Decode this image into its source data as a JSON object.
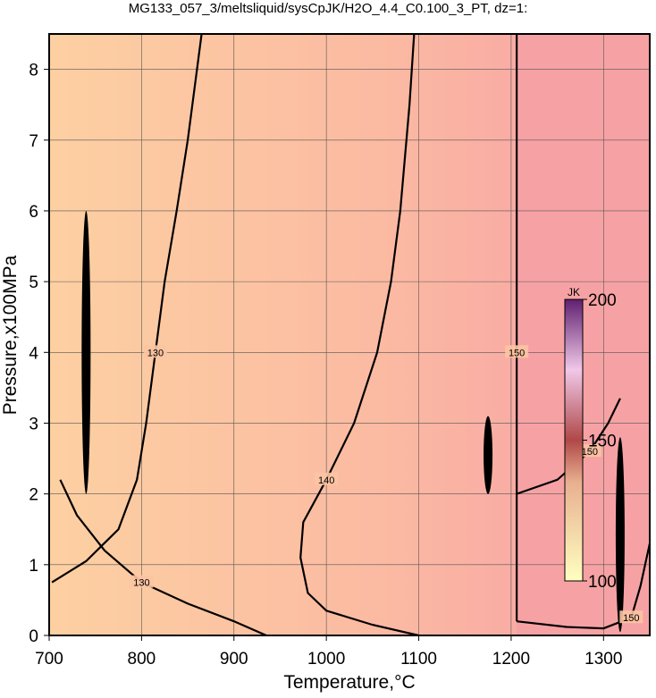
{
  "chart_data": {
    "type": "contour",
    "title": "MG133_057_3/meltsliquid/sysCpJK/H2O_4.4_C0.100_3_PT, dz=1:",
    "x_label": "Temperature,°C",
    "y_label": "Pressure,x100MPa",
    "xlim": [
      700,
      1350
    ],
    "ylim": [
      0,
      8.5
    ],
    "xticks": [
      700,
      800,
      900,
      1000,
      1100,
      1200,
      1300
    ],
    "yticks": [
      0,
      1,
      2,
      3,
      4,
      5,
      6,
      7,
      8
    ],
    "grid": true,
    "colorbar": {
      "label": "JK",
      "lim": [
        100,
        200
      ],
      "ticks": [
        100,
        150,
        200
      ]
    },
    "contours": [
      {
        "level": 130,
        "x": [
          703,
          740,
          775,
          795,
          805,
          815,
          825,
          838,
          850,
          860,
          865
        ],
        "y": [
          0.75,
          1.05,
          1.5,
          2.2,
          3,
          4,
          5,
          6,
          7,
          8,
          8.5
        ]
      },
      {
        "level": 130,
        "x": [
          712,
          730,
          760,
          800,
          850,
          900,
          935
        ],
        "y": [
          2.2,
          1.7,
          1.2,
          0.75,
          0.45,
          0.2,
          0
        ]
      },
      {
        "level": 140,
        "x": [
          1100,
          1050,
          1000,
          980,
          972,
          975,
          1000,
          1030,
          1055,
          1070,
          1080,
          1090,
          1095
        ],
        "y": [
          0,
          0.15,
          0.35,
          0.6,
          1.1,
          1.6,
          2.2,
          3,
          4,
          5,
          6,
          7.5,
          8.5
        ]
      },
      {
        "level": 150,
        "x": [
          1206,
          1206,
          1206,
          1206,
          1206
        ],
        "y": [
          0.2,
          2,
          4,
          6,
          8.5
        ]
      },
      {
        "level": 150,
        "x": [
          1206,
          1250,
          1285,
          1305,
          1318
        ],
        "y": [
          2,
          2.2,
          2.6,
          3.0,
          3.35
        ]
      },
      {
        "level": 150,
        "x": [
          1206,
          1260,
          1300,
          1330,
          1340,
          1350
        ],
        "y": [
          0.2,
          0.12,
          0.1,
          0.25,
          0.7,
          1.3
        ]
      }
    ]
  }
}
